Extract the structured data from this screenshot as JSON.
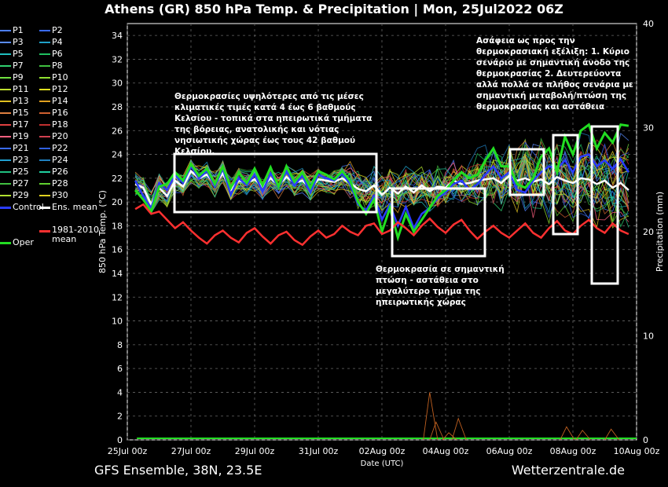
{
  "title": "Athens  (GR)  850 hPa Temp. & Precipitation | Mon, 25Jul2022 06Z",
  "footer": {
    "left": "GFS Ensemble, 38N, 23.5E",
    "right": "Wetterzentrale.de"
  },
  "annotations": {
    "a1": "Θερμοκρασίες υψηλότερες από τις μέσες κλιματικές τιμές κατά 4 έως 6 βαθμούς Κελσίου - τοπικά στα ηπειρωτικά τμήματα της βόρειας, ανατολικής και νότιας νησιωτικής χώρας έως τους 42 βαθμού Κελσίου.",
    "a2": "Θερμοκρασία σε σημαντική πτώση - αστάθεια στο μεγαλύτερο τμήμα της ηπειρωτικής χώρας",
    "a3": "Ασάφεια ως προς την θερμοκρασιακή εξέλιξη: 1. Κύριο σενάριο με σημαντική άνοδο της θερμοκρασίας 2. Δευτερεύοντα αλλά πολλά σε πλήθος σενάρια με σημαντική μεταβολή/πτώση της θερμοκρασίας και αστάθεια"
  },
  "legend": [
    {
      "label": "P1",
      "color": "#4d7fff"
    },
    {
      "label": "P2",
      "color": "#3a6bff"
    },
    {
      "label": "P3",
      "color": "#5a8cff"
    },
    {
      "label": "P4",
      "color": "#1fa0c8"
    },
    {
      "label": "P5",
      "color": "#20c0c0"
    },
    {
      "label": "P6",
      "color": "#20c060"
    },
    {
      "label": "P7",
      "color": "#30d070"
    },
    {
      "label": "P8",
      "color": "#40c040"
    },
    {
      "label": "P9",
      "color": "#70e040"
    },
    {
      "label": "P10",
      "color": "#90e030"
    },
    {
      "label": "P11",
      "color": "#c0e030"
    },
    {
      "label": "P12",
      "color": "#e0e020"
    },
    {
      "label": "P13",
      "color": "#e0c020"
    },
    {
      "label": "P14",
      "color": "#e0a020"
    },
    {
      "label": "P15",
      "color": "#e08040"
    },
    {
      "label": "P16",
      "color": "#d06030"
    },
    {
      "label": "P17",
      "color": "#e04040"
    },
    {
      "label": "P18",
      "color": "#c03030"
    },
    {
      "label": "P19",
      "color": "#ff6080"
    },
    {
      "label": "P20",
      "color": "#d04050"
    },
    {
      "label": "P21",
      "color": "#3a6bff"
    },
    {
      "label": "P22",
      "color": "#3060e0"
    },
    {
      "label": "P23",
      "color": "#20a0d0"
    },
    {
      "label": "P24",
      "color": "#2080c0"
    },
    {
      "label": "P25",
      "color": "#20c080"
    },
    {
      "label": "P26",
      "color": "#20d0a0"
    },
    {
      "label": "P27",
      "color": "#40c040"
    },
    {
      "label": "P28",
      "color": "#60d030"
    },
    {
      "label": "P29",
      "color": "#b0e030"
    },
    {
      "label": "P30",
      "color": "#e0d020"
    },
    {
      "label": "Control",
      "color": "#2a3cff"
    },
    {
      "label": "Ens. mean",
      "color": "#ffffff"
    },
    {
      "label": "Oper",
      "color": "#22dd22"
    },
    {
      "label": "1981-2010 mean",
      "color": "#ff3030"
    }
  ],
  "chart_data": {
    "type": "line",
    "xlabel": "Date (UTC)",
    "ylabel": "850 hPa Temp. (°C)",
    "ylabel_right": "Precipitation (mm)",
    "ylim": [
      0,
      35
    ],
    "ylim_right": [
      0,
      40
    ],
    "y_ticks": [
      0,
      2,
      4,
      6,
      8,
      10,
      12,
      14,
      16,
      18,
      20,
      22,
      24,
      26,
      28,
      30,
      32,
      34
    ],
    "y_ticks_right": [
      0,
      10,
      20,
      30,
      40
    ],
    "x_ticks": [
      "25Jul 00z",
      "27Jul 00z",
      "29Jul 00z",
      "31Jul 00z",
      "02Aug 00z",
      "04Aug 00z",
      "06Aug 00z",
      "08Aug 00z",
      "10Aug 00z"
    ],
    "x_range_days": [
      0,
      16
    ],
    "grid": true,
    "series": [
      {
        "name": "Ens. mean",
        "color": "#ffffff",
        "x": [
          0.25,
          0.5,
          0.75,
          1,
          1.25,
          1.5,
          1.75,
          2,
          2.25,
          2.5,
          2.75,
          3,
          3.25,
          3.5,
          3.75,
          4,
          4.25,
          4.5,
          4.75,
          5,
          5.25,
          5.5,
          5.75,
          6,
          6.25,
          6.5,
          6.75,
          7,
          7.25,
          7.5,
          7.75,
          8,
          8.25,
          8.5,
          8.75,
          9,
          9.25,
          9.5,
          9.75,
          10,
          10.25,
          10.5,
          10.75,
          11,
          11.25,
          11.5,
          11.75,
          12,
          12.25,
          12.5,
          12.75,
          13,
          13.25,
          13.5,
          13.75,
          14,
          14.25,
          14.5,
          14.75,
          15,
          15.25,
          15.5,
          15.75
        ],
        "y": [
          21.5,
          21.2,
          19.8,
          21.2,
          20.5,
          21.8,
          21.3,
          22.6,
          22.0,
          22.3,
          21.5,
          22.4,
          21.0,
          21.8,
          21.6,
          21.9,
          21.3,
          22.0,
          21.4,
          22.1,
          21.6,
          21.8,
          21.2,
          21.9,
          21.8,
          21.7,
          22.0,
          21.6,
          21.1,
          20.9,
          21.4,
          20.6,
          21.2,
          20.7,
          21.3,
          20.8,
          21.4,
          20.9,
          21.3,
          21.2,
          21.8,
          21.5,
          21.6,
          21.8,
          21.9,
          22.0,
          21.6,
          22.2,
          21.8,
          22.0,
          21.7,
          21.9,
          21.5,
          22.1,
          21.8,
          21.6,
          22.0,
          21.9,
          21.5,
          21.8,
          21.2,
          21.6,
          21.0
        ]
      },
      {
        "name": "Control",
        "color": "#2a3cff",
        "x": [
          0.25,
          0.5,
          0.75,
          1,
          1.25,
          1.5,
          1.75,
          2,
          2.25,
          2.5,
          2.75,
          3,
          3.25,
          3.5,
          3.75,
          4,
          4.25,
          4.5,
          4.75,
          5,
          5.25,
          5.5,
          5.75,
          6,
          6.25,
          6.5,
          6.75,
          7,
          7.25,
          7.5,
          7.75,
          8,
          8.25,
          8.5,
          8.75,
          9,
          9.25,
          9.5,
          9.75,
          10,
          10.25,
          10.5,
          10.75,
          11,
          11.25,
          11.5,
          11.75,
          12,
          12.25,
          12.5,
          12.75,
          13,
          13.25,
          13.5,
          13.75,
          14,
          14.25,
          14.5,
          14.75,
          15,
          15.25,
          15.5,
          15.75
        ],
        "y": [
          21.8,
          20.5,
          19.5,
          21.6,
          21.0,
          22.3,
          21.6,
          23.0,
          22.0,
          22.6,
          21.3,
          22.8,
          20.6,
          22.0,
          21.4,
          22.3,
          20.9,
          22.4,
          21.2,
          22.6,
          21.4,
          22.2,
          20.8,
          22.3,
          22.0,
          21.8,
          22.4,
          21.5,
          19.8,
          19.3,
          20.5,
          18.5,
          19.8,
          18.0,
          19.6,
          17.8,
          19.0,
          19.5,
          20.3,
          20.8,
          21.5,
          21.8,
          21.0,
          21.5,
          22.3,
          23.0,
          22.0,
          22.5,
          21.0,
          20.8,
          21.8,
          22.5,
          23.0,
          22.8,
          23.5,
          22.5,
          23.8,
          24.0,
          23.0,
          23.5,
          22.8,
          23.6,
          22.5
        ]
      },
      {
        "name": "Oper",
        "color": "#22dd22",
        "x": [
          0.25,
          0.5,
          0.75,
          1,
          1.25,
          1.5,
          1.75,
          2,
          2.25,
          2.5,
          2.75,
          3,
          3.25,
          3.5,
          3.75,
          4,
          4.25,
          4.5,
          4.75,
          5,
          5.25,
          5.5,
          5.75,
          6,
          6.25,
          6.5,
          6.75,
          7,
          7.25,
          7.5,
          7.75,
          8,
          8.25,
          8.5,
          8.75,
          9,
          9.25,
          9.5,
          9.75,
          10,
          10.25,
          10.5,
          10.75,
          11,
          11.25,
          11.5,
          11.75,
          12,
          12.25,
          12.5,
          12.75,
          13,
          13.25,
          13.5,
          13.75,
          14,
          14.25,
          14.5,
          14.75,
          15,
          15.25,
          15.5,
          15.75
        ],
        "y": [
          21.0,
          20.2,
          19.2,
          21.3,
          21.5,
          22.5,
          21.8,
          23.2,
          22.2,
          22.8,
          21.5,
          23.0,
          21.2,
          22.5,
          21.6,
          22.8,
          21.4,
          22.9,
          21.3,
          23.0,
          21.7,
          22.5,
          21.2,
          22.6,
          22.3,
          21.9,
          22.6,
          21.8,
          20.0,
          19.0,
          20.2,
          17.5,
          19.5,
          17.0,
          19.0,
          17.5,
          18.5,
          19.5,
          20.5,
          21.0,
          21.8,
          22.5,
          22.0,
          22.3,
          23.5,
          24.5,
          23.0,
          23.0,
          21.5,
          21.2,
          22.0,
          23.8,
          24.5,
          22.5,
          25.5,
          24.0,
          26.0,
          26.5,
          24.5,
          25.8,
          25.0,
          26.5,
          26.4
        ]
      },
      {
        "name": "1981-2010 mean",
        "color": "#ff3030",
        "x": [
          0.25,
          0.5,
          0.75,
          1,
          1.25,
          1.5,
          1.75,
          2,
          2.25,
          2.5,
          2.75,
          3,
          3.25,
          3.5,
          3.75,
          4,
          4.25,
          4.5,
          4.75,
          5,
          5.25,
          5.5,
          5.75,
          6,
          6.25,
          6.5,
          6.75,
          7,
          7.25,
          7.5,
          7.75,
          8,
          8.25,
          8.5,
          8.75,
          9,
          9.25,
          9.5,
          9.75,
          10,
          10.25,
          10.5,
          10.75,
          11,
          11.25,
          11.5,
          11.75,
          12,
          12.25,
          12.5,
          12.75,
          13,
          13.25,
          13.5,
          13.75,
          14,
          14.25,
          14.5,
          14.75,
          15,
          15.25,
          15.5,
          15.75
        ],
        "y": [
          19.4,
          19.8,
          19.0,
          19.2,
          18.5,
          17.8,
          18.3,
          17.6,
          17.0,
          16.5,
          17.2,
          17.6,
          17.0,
          16.6,
          17.4,
          17.8,
          17.1,
          16.5,
          17.2,
          17.5,
          16.8,
          16.4,
          17.1,
          17.6,
          17.0,
          17.3,
          18.0,
          17.5,
          17.2,
          18.0,
          18.2,
          17.3,
          17.6,
          18.3,
          17.8,
          17.2,
          18.0,
          18.6,
          17.9,
          17.4,
          18.1,
          18.5,
          17.6,
          16.9,
          17.5,
          18.0,
          17.4,
          17.0,
          17.6,
          18.2,
          17.4,
          17.0,
          17.8,
          18.4,
          17.6,
          17.3,
          18.0,
          18.5,
          17.8,
          17.4,
          18.2,
          17.6,
          17.3
        ]
      }
    ],
    "precip_note": "near zero with small spikes ~04Aug (~4 mm) and ~05Aug"
  }
}
